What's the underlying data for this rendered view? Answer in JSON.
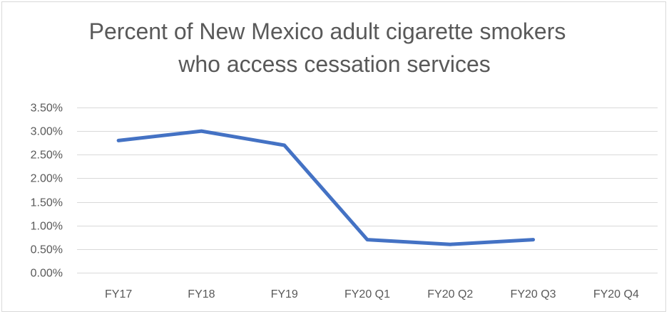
{
  "chart_data": {
    "type": "line",
    "title_lines": [
      "Percent of New Mexico adult cigarette smokers",
      "who access cessation services"
    ],
    "categories": [
      "FY17",
      "FY18",
      "FY19",
      "FY20 Q1",
      "FY20 Q2",
      "FY20 Q3",
      "FY20 Q4"
    ],
    "series": [
      {
        "values": [
          0.028,
          0.03,
          0.027,
          0.007,
          0.006,
          0.007,
          null
        ],
        "color": "#4472c4"
      }
    ],
    "ylim": [
      0,
      0.035
    ],
    "yticks": [
      0,
      0.005,
      0.01,
      0.015,
      0.02,
      0.025,
      0.03,
      0.035
    ],
    "ytick_labels": [
      "0.00%",
      "0.50%",
      "1.00%",
      "1.50%",
      "2.00%",
      "2.50%",
      "3.00%",
      "3.50%"
    ],
    "grid": true,
    "legend": "none",
    "gridline_color": "#d9d9d9"
  }
}
